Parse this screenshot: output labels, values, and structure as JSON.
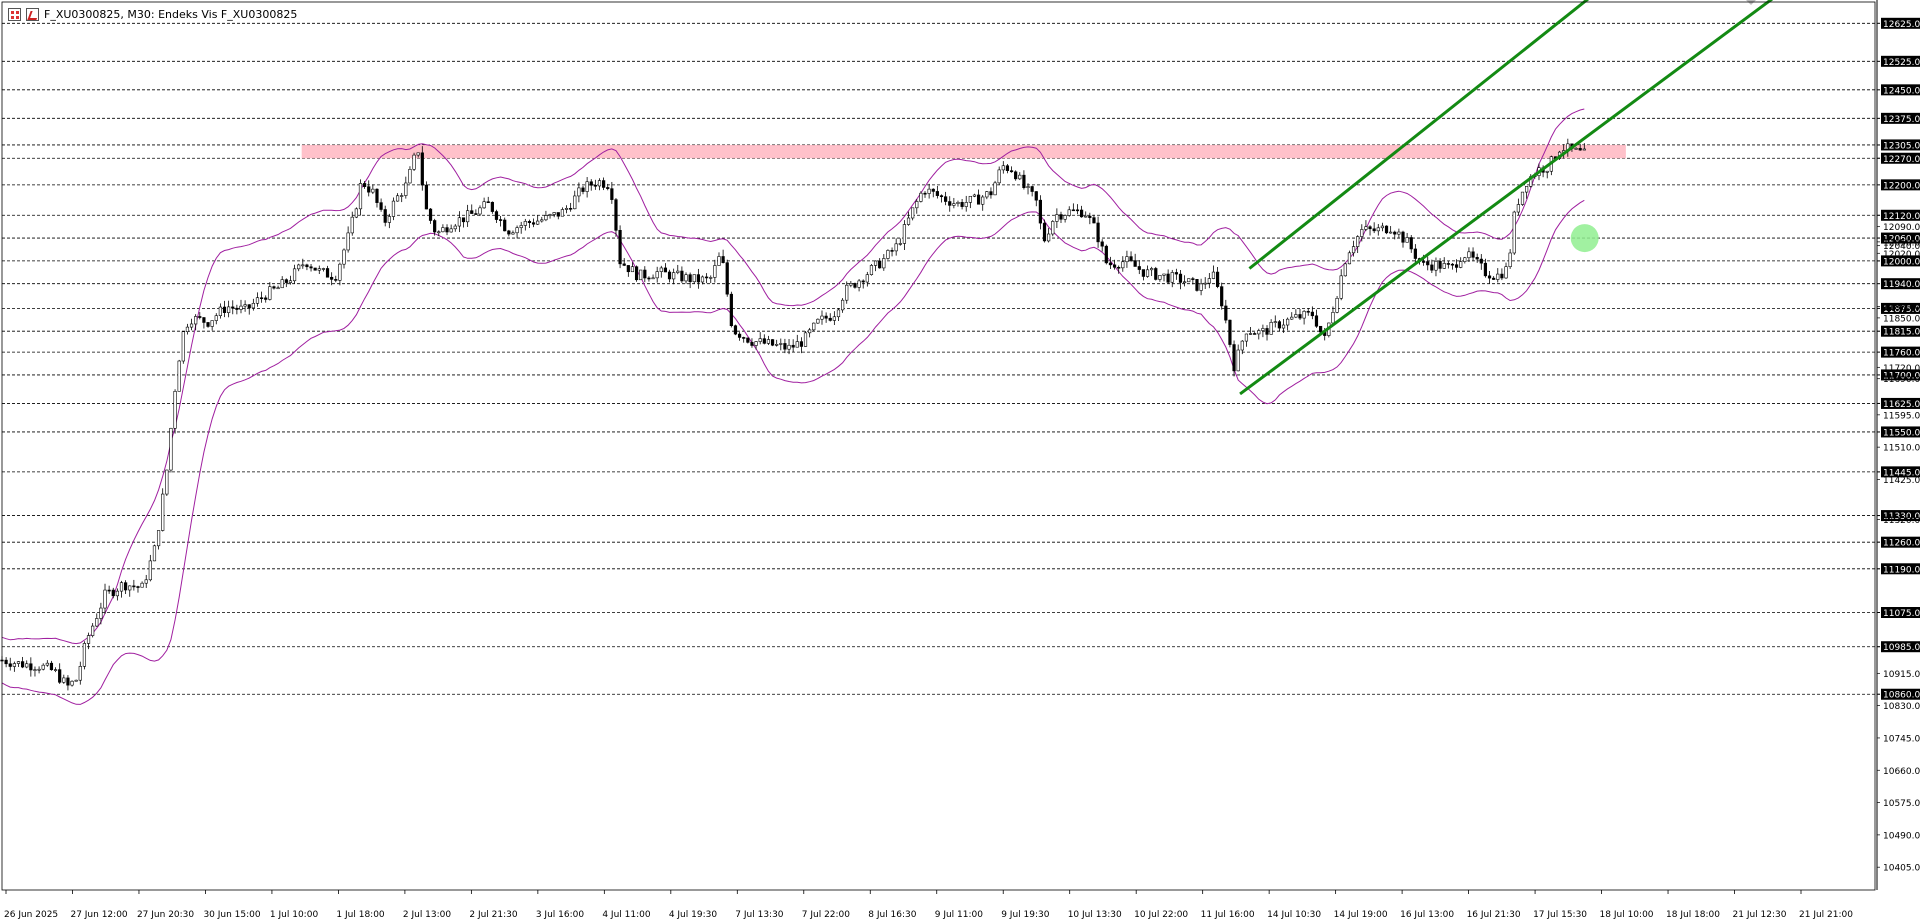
{
  "window": {
    "title": "F_XU0300825, M30:  Endeks Vis F_XU0300825",
    "icons": [
      "grid-icon",
      "chart-icon"
    ]
  },
  "chart_data": {
    "type": "candlestick",
    "symbol": "F_XU0300825",
    "timeframe": "M30",
    "colors": {
      "candles": "#000000",
      "bollinger": "#a020a0",
      "channel": "#138a13",
      "resistance_zone": "#ffb6c1",
      "marker": "#90ee90",
      "price_tag_bg": "#000000",
      "price_tag_text": "#ffffff",
      "grid": "#000000"
    },
    "grid": "dashed horizontal lines at labelled price levels",
    "ylim": [
      10345,
      12660
    ],
    "y_ticks_small": [
      12305,
      12270,
      12120,
      12090,
      12060,
      12050,
      12040,
      12020,
      12000,
      11880,
      11850,
      11815,
      11720,
      11690,
      11625,
      11595,
      11550,
      11510,
      11445,
      11425,
      11330,
      11320,
      11260,
      11190,
      11075,
      10985,
      10915,
      10860,
      10830,
      10745,
      10660,
      10575,
      10490,
      10405
    ],
    "price_levels": [
      "12625.00",
      "12525.00",
      "12450.00",
      "12375.00",
      "12305.00",
      "12270.00",
      "12200.00",
      "12120.00",
      "12060.00",
      "12000.00",
      "11940.00",
      "11875.00",
      "11815.00",
      "11760.00",
      "11700.00",
      "11625.00",
      "11550.00",
      "11445.00",
      "11330.00",
      "11260.00",
      "11190.00",
      "11075.00",
      "10985.00",
      "10860.00"
    ],
    "plain_y_labels": [
      "12090.00",
      "12050.00",
      "12040.00",
      "12020.00",
      "11880.00",
      "11850.00",
      "11720.00",
      "11690.00",
      "11595.00",
      "11510.00",
      "11425.00",
      "11320.00",
      "10915.00",
      "10830.00",
      "10745.00",
      "10660.00",
      "10575.00",
      "10490.00",
      "10405.00"
    ],
    "x_labels": [
      "26 Jun 2025",
      "27 Jun 12:00",
      "27 Jun 20:30",
      "30 Jun 15:00",
      "1 Jul 10:00",
      "1 Jul 18:00",
      "2 Jul 13:00",
      "2 Jul 21:30",
      "3 Jul 16:00",
      "4 Jul 11:00",
      "4 Jul 19:30",
      "7 Jul 13:30",
      "7 Jul 22:00",
      "8 Jul 16:30",
      "9 Jul 11:00",
      "9 Jul 19:30",
      "10 Jul 13:30",
      "10 Jul 22:00",
      "11 Jul 16:00",
      "14 Jul 10:30",
      "14 Jul 19:00",
      "16 Jul 13:00",
      "16 Jul 21:30",
      "17 Jul 15:30",
      "18 Jul 10:00",
      "18 Jul 18:00",
      "21 Jul 12:30",
      "21 Jul 21:00"
    ],
    "price_path": [
      [
        0,
        10950
      ],
      [
        10,
        10940
      ],
      [
        20,
        10935
      ],
      [
        28,
        10920
      ],
      [
        35,
        10880
      ],
      [
        40,
        10900
      ],
      [
        45,
        11000
      ],
      [
        55,
        11120
      ],
      [
        65,
        11150
      ],
      [
        75,
        11140
      ],
      [
        82,
        11250
      ],
      [
        88,
        11450
      ],
      [
        92,
        11650
      ],
      [
        96,
        11800
      ],
      [
        100,
        11850
      ],
      [
        110,
        11840
      ],
      [
        120,
        11880
      ],
      [
        130,
        11870
      ],
      [
        140,
        11910
      ],
      [
        148,
        11930
      ],
      [
        155,
        11960
      ],
      [
        162,
        12000
      ],
      [
        170,
        11970
      ],
      [
        178,
        11960
      ],
      [
        186,
        12080
      ],
      [
        192,
        12210
      ],
      [
        198,
        12180
      ],
      [
        204,
        12100
      ],
      [
        210,
        12160
      ],
      [
        216,
        12200
      ],
      [
        222,
        12300
      ],
      [
        226,
        12140
      ],
      [
        232,
        12070
      ],
      [
        240,
        12100
      ],
      [
        250,
        12120
      ],
      [
        260,
        12150
      ],
      [
        270,
        12080
      ],
      [
        280,
        12100
      ],
      [
        290,
        12110
      ],
      [
        300,
        12130
      ],
      [
        310,
        12190
      ],
      [
        318,
        12210
      ],
      [
        325,
        12200
      ],
      [
        330,
        12000
      ],
      [
        340,
        11960
      ],
      [
        350,
        11970
      ],
      [
        360,
        11960
      ],
      [
        370,
        11950
      ],
      [
        378,
        11950
      ],
      [
        384,
        12020
      ],
      [
        390,
        11820
      ],
      [
        400,
        11790
      ],
      [
        410,
        11780
      ],
      [
        420,
        11770
      ],
      [
        428,
        11790
      ],
      [
        436,
        11840
      ],
      [
        444,
        11860
      ],
      [
        450,
        11920
      ],
      [
        460,
        11960
      ],
      [
        470,
        12000
      ],
      [
        478,
        12040
      ],
      [
        486,
        12130
      ],
      [
        492,
        12190
      ],
      [
        500,
        12170
      ],
      [
        510,
        12150
      ],
      [
        520,
        12160
      ],
      [
        528,
        12180
      ],
      [
        534,
        12250
      ],
      [
        540,
        12240
      ],
      [
        546,
        12190
      ],
      [
        552,
        12160
      ],
      [
        556,
        12050
      ],
      [
        562,
        12120
      ],
      [
        570,
        12130
      ],
      [
        578,
        12130
      ],
      [
        584,
        12080
      ],
      [
        590,
        11990
      ],
      [
        600,
        12000
      ],
      [
        610,
        11970
      ],
      [
        620,
        11960
      ],
      [
        630,
        11950
      ],
      [
        640,
        11930
      ],
      [
        646,
        11970
      ],
      [
        652,
        11880
      ],
      [
        658,
        11720
      ],
      [
        664,
        11820
      ],
      [
        672,
        11810
      ],
      [
        680,
        11830
      ],
      [
        690,
        11850
      ],
      [
        700,
        11860
      ],
      [
        706,
        11790
      ],
      [
        712,
        11900
      ],
      [
        718,
        12020
      ],
      [
        726,
        12080
      ],
      [
        734,
        12080
      ],
      [
        742,
        12090
      ],
      [
        750,
        12050
      ],
      [
        758,
        11990
      ],
      [
        766,
        11990
      ],
      [
        774,
        11980
      ],
      [
        780,
        12020
      ],
      [
        786,
        12000
      ],
      [
        792,
        11970
      ],
      [
        798,
        11960
      ],
      [
        804,
        11980
      ],
      [
        808,
        12140
      ],
      [
        814,
        12210
      ],
      [
        820,
        12240
      ],
      [
        826,
        12250
      ],
      [
        832,
        12300
      ],
      [
        838,
        12290
      ],
      [
        845,
        12280
      ]
    ],
    "bollinger_width": [
      [
        0,
        60
      ],
      [
        60,
        90
      ],
      [
        90,
        260
      ],
      [
        120,
        180
      ],
      [
        200,
        150
      ],
      [
        250,
        90
      ],
      [
        330,
        110
      ],
      [
        390,
        90
      ],
      [
        450,
        110
      ],
      [
        520,
        100
      ],
      [
        560,
        80
      ],
      [
        640,
        90
      ],
      [
        660,
        190
      ],
      [
        720,
        120
      ],
      [
        800,
        70
      ],
      [
        820,
        140
      ],
      [
        845,
        120
      ]
    ],
    "resistance_zone": {
      "x_from": 160,
      "x_to": 867,
      "price_low": 12270,
      "price_high": 12305
    },
    "channel_lines": [
      {
        "from": [
          661,
          11650
        ],
        "to": [
          1000,
          12890
        ]
      },
      {
        "from": [
          666,
          11980
        ],
        "to": [
          1000,
          13290
        ]
      }
    ],
    "marker": {
      "x": 845,
      "price": 12060
    }
  }
}
